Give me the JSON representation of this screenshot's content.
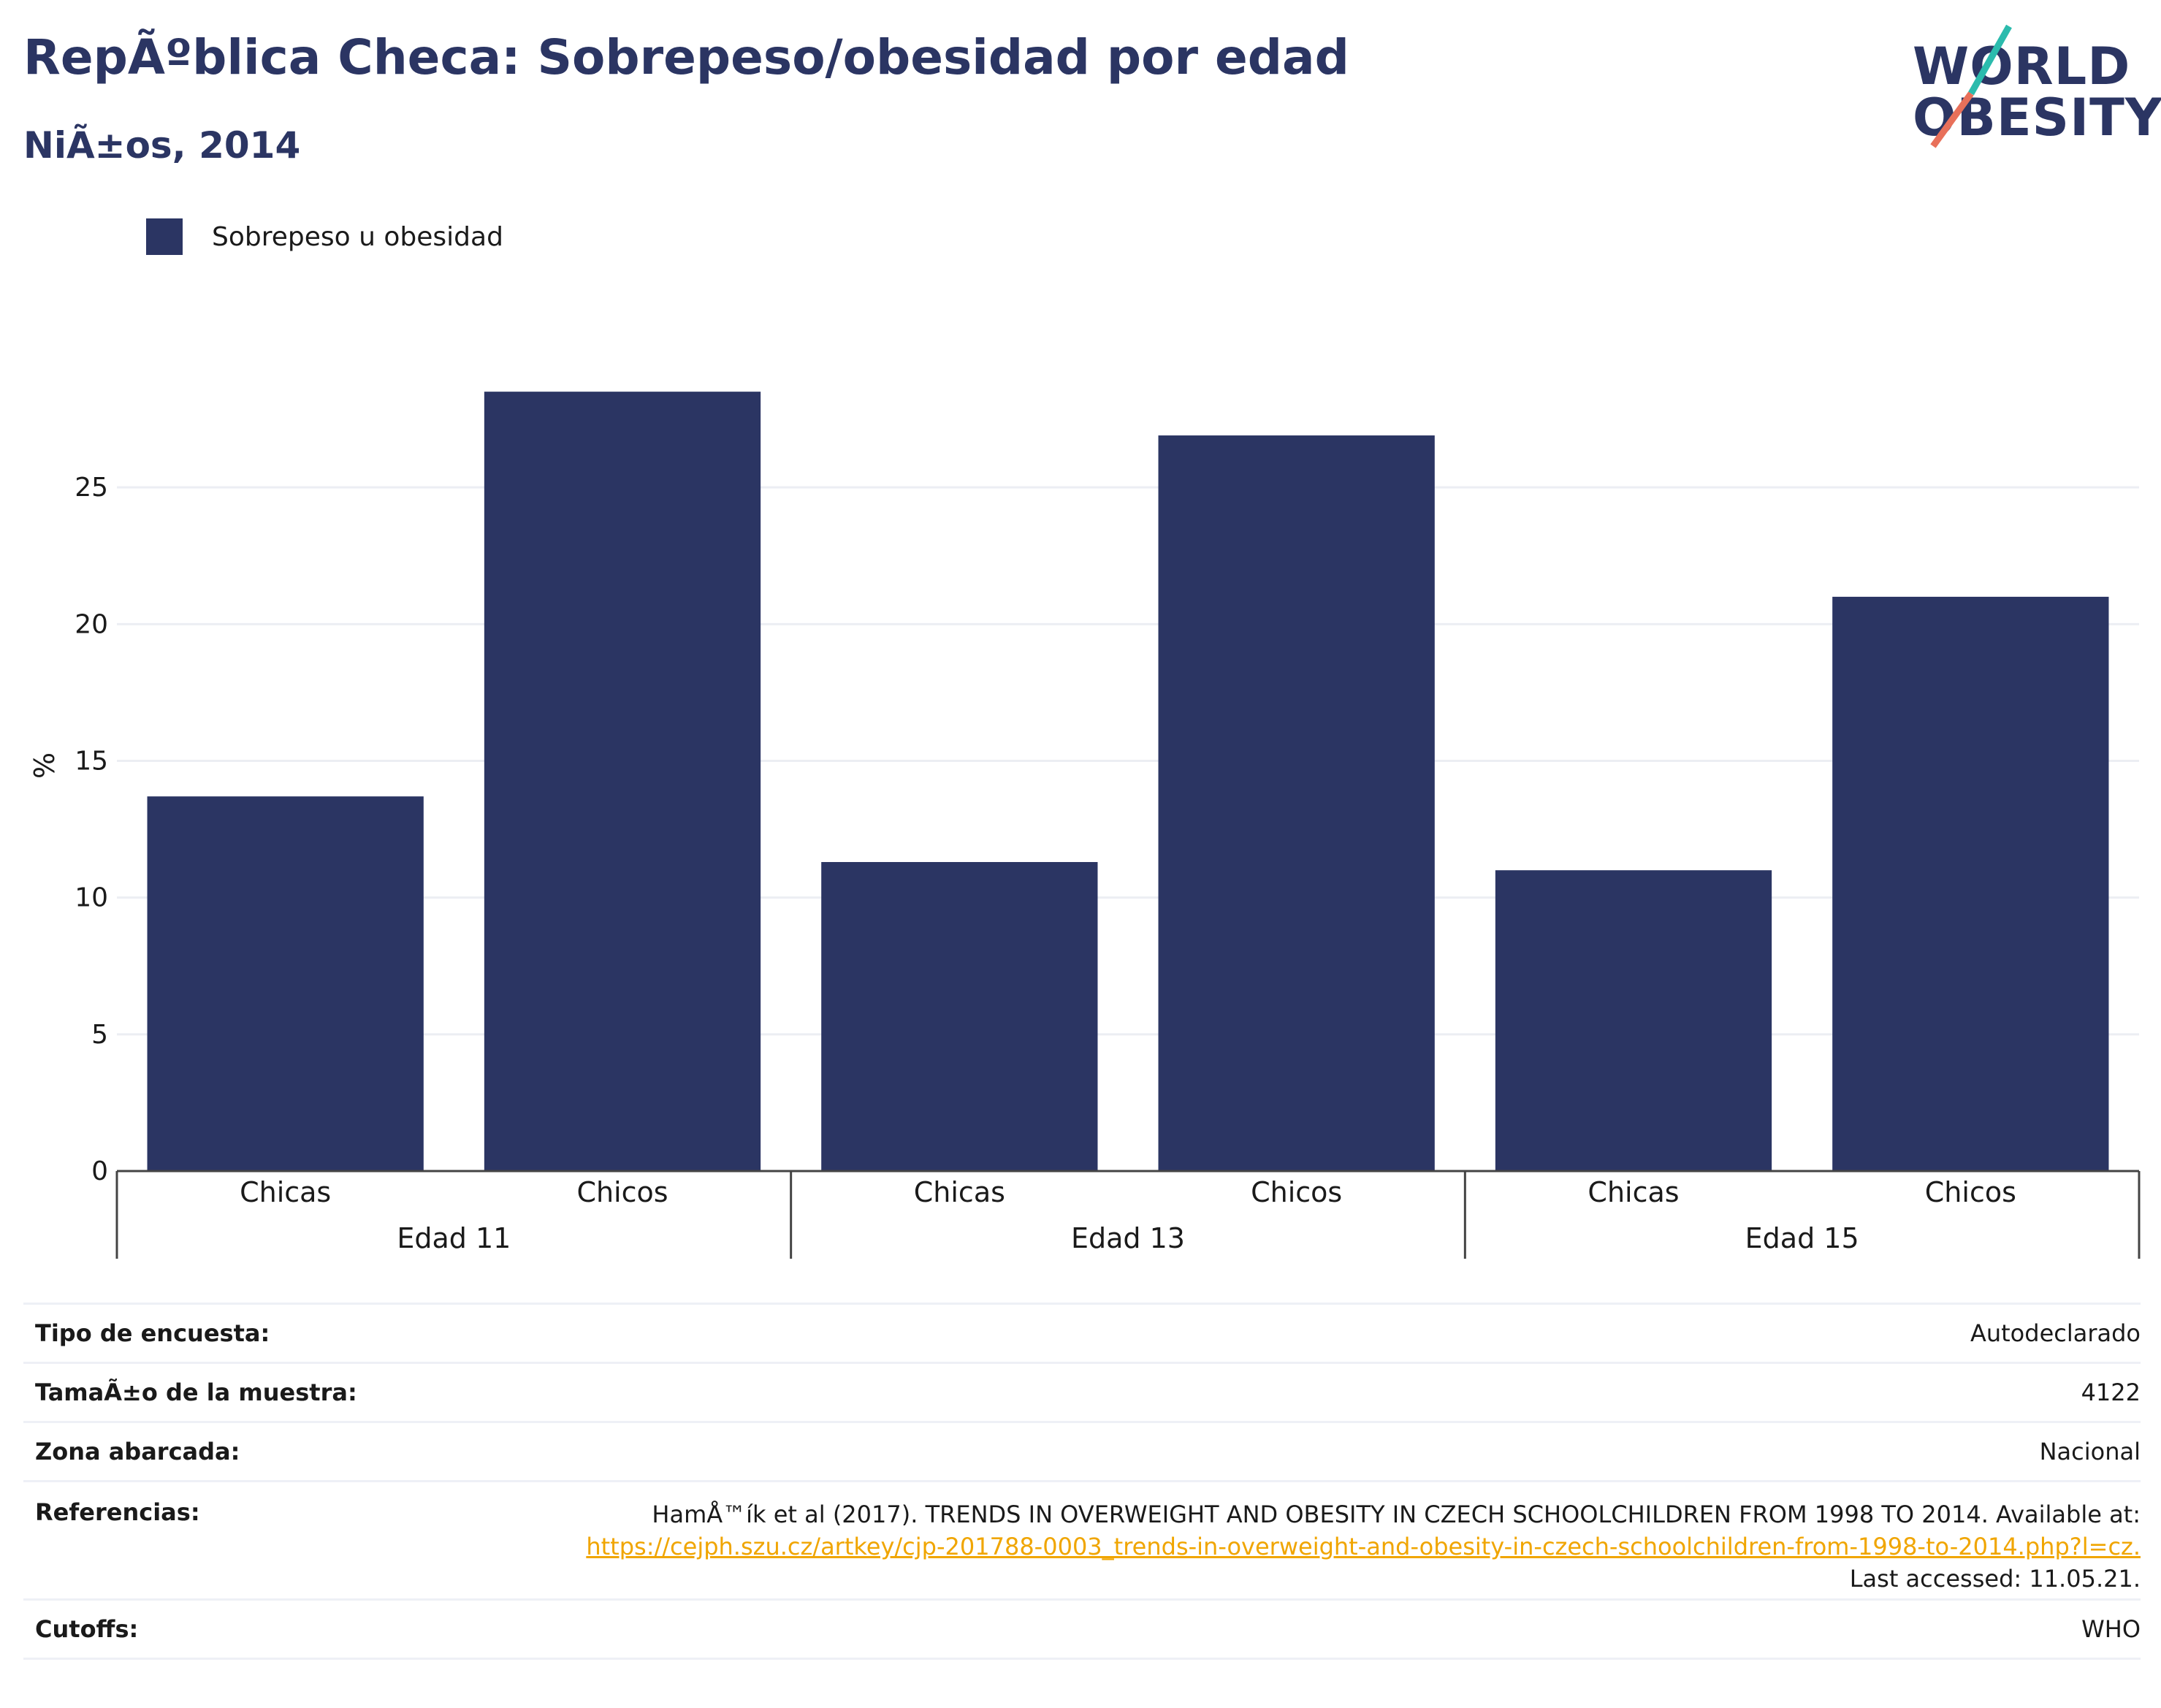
{
  "header": {
    "title": "RepÃºblica Checa: Sobrepeso/obesidad por edad",
    "subtitle": "NiÃ±os, 2014"
  },
  "logo": {
    "line1": "WORLD",
    "line2": "OBESITY",
    "accent_teal": "#2bbbad",
    "accent_coral": "#e8705a"
  },
  "legend": {
    "label": "Sobrepeso u obesidad"
  },
  "chart_data": {
    "type": "bar",
    "ylabel": "%",
    "ylim": [
      0,
      30
    ],
    "yticks": [
      0,
      5,
      10,
      15,
      20,
      25
    ],
    "grid": true,
    "legend_position": "top-left",
    "groups": [
      "Edad 11",
      "Edad 13",
      "Edad 15"
    ],
    "categories": [
      "Chicas",
      "Chicos",
      "Chicas",
      "Chicos",
      "Chicas",
      "Chicos"
    ],
    "series": [
      {
        "name": "Sobrepeso u obesidad",
        "color": "#2b3563",
        "values": [
          13.7,
          28.5,
          11.3,
          26.9,
          11.0,
          21.0
        ]
      }
    ]
  },
  "info": {
    "survey_type_label": "Tipo de encuesta:",
    "survey_type_value": "Autodeclarado",
    "sample_size_label": "TamaÃ±o de la muestra:",
    "sample_size_value": "4122",
    "area_label": "Zona abarcada:",
    "area_value": "Nacional",
    "references_label": "Referencias:",
    "references_text": "HamÅ™ík et al (2017). TRENDS IN OVERWEIGHT AND OBESITY IN CZECH SCHOOLCHILDREN FROM 1998 TO 2014. Available at:",
    "references_link": "https://cejph.szu.cz/artkey/cjp-201788-0003_trends-in-overweight-and-obesity-in-czech-schoolchildren-from-1998-to-2014.php?l=cz.",
    "references_accessed": "Last accessed: 11.05.21.",
    "cutoffs_label": "Cutoffs:",
    "cutoffs_value": "WHO"
  }
}
